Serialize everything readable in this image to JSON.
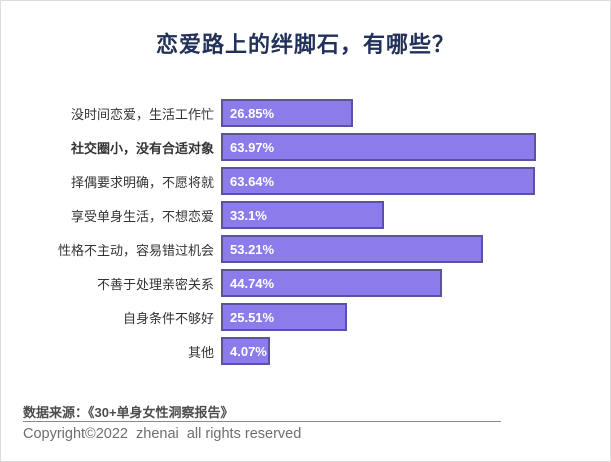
{
  "page": {
    "title": "恋爱路上的绊脚石，有哪些？",
    "title_color": "#223159"
  },
  "chart_data": {
    "type": "bar",
    "orientation": "horizontal",
    "title": "恋爱路上的绊脚石，有哪些？",
    "categories": [
      "没时间恋爱，生活工作忙",
      "社交圈小，没有合适对象",
      "择偶要求明确，不愿将就",
      "享受单身生活，不想恋爱",
      "性格不主动，容易错过机会",
      "不善于处理亲密关系",
      "自身条件不够好",
      "其他"
    ],
    "values": [
      26.85,
      63.97,
      63.64,
      33.1,
      53.21,
      44.74,
      25.51,
      4.07
    ],
    "value_labels": [
      "26.85%",
      "63.97%",
      "63.64%",
      "33.1%",
      "53.21%",
      "44.74%",
      "25.51%",
      "4.07%"
    ],
    "emphasized_index": 1,
    "emphasized_category": "社交圈小，没有合适对象",
    "xlabel": "",
    "ylabel": "",
    "xlim": [
      0,
      70
    ],
    "grid": false,
    "legend": false,
    "bar_color": "#8c7ceb",
    "bar_border_color": "#5a52a3",
    "value_text_color": "#ffffff",
    "label_color": "#333333"
  },
  "footer": {
    "source": "数据来源：《30+单身女性洞察报告》",
    "copyright": "Copyright©2022  zhenai  all rights reserved"
  }
}
